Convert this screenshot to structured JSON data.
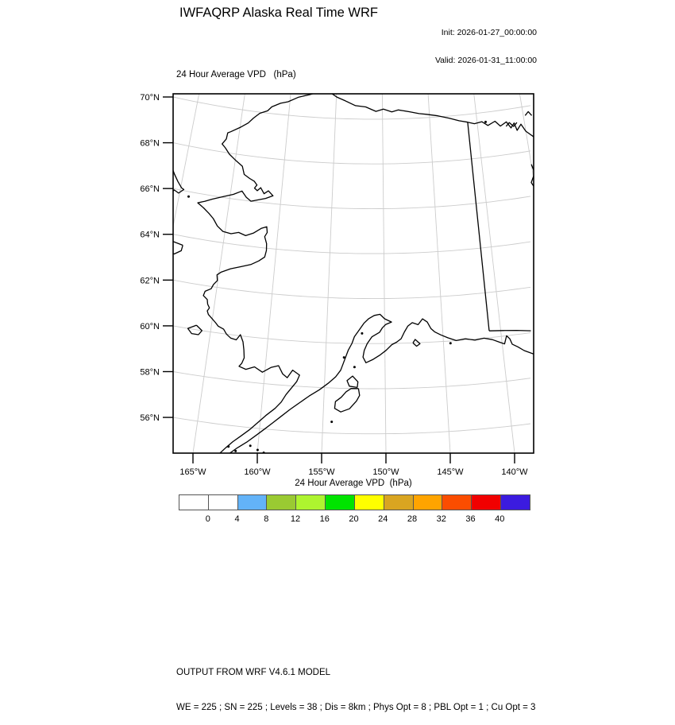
{
  "header": {
    "title": "IWFAQRP Alaska Real Time WRF",
    "init": "Init: 2026-01-27_00:00:00",
    "valid": "Valid: 2026-01-31_11:00:00"
  },
  "map": {
    "subtitle": "24 Hour Average VPD   (hPa)",
    "lat_labels": [
      "70°N",
      "68°N",
      "66°N",
      "64°N",
      "62°N",
      "60°N",
      "58°N",
      "56°N"
    ],
    "lon_labels": [
      "165°W",
      "160°W",
      "155°W",
      "150°W",
      "145°W",
      "140°W"
    ],
    "coast_color": "#000000",
    "graticule_color": "#cccccc"
  },
  "colorbar": {
    "title": "24 Hour Average VPD  (hPa)",
    "tick_labels": [
      "0",
      "4",
      "8",
      "12",
      "16",
      "20",
      "24",
      "28",
      "32",
      "36",
      "40"
    ],
    "cell_colors": [
      "#ffffff",
      "#ffffff",
      "#63b3f8",
      "#9aca32",
      "#aef42f",
      "#00e400",
      "#ffff00",
      "#d9a521",
      "#ffa400",
      "#fb4d00",
      "#f10000",
      "#3b1bdf"
    ]
  },
  "footer": {
    "line1": "OUTPUT FROM WRF V4.6.1 MODEL",
    "line2": "WE = 225 ; SN = 225 ; Levels = 38 ; Dis = 8km ; Phys Opt = 8 ; PBL Opt = 1 ; Cu Opt = 3"
  },
  "chart_data": {
    "type": "map",
    "title": "24 Hour Average VPD (hPa)",
    "region": "Alaska (WRF domain)",
    "lat_ticks_deg_n": [
      70,
      68,
      66,
      64,
      62,
      60,
      58,
      56
    ],
    "lon_ticks_deg_w": [
      165,
      160,
      155,
      150,
      145,
      140
    ],
    "colorbar_levels": [
      0,
      4,
      8,
      12,
      16,
      20,
      24,
      28,
      32,
      36,
      40
    ],
    "shaded_field": "all visible area white (below lowest shaded level)"
  }
}
